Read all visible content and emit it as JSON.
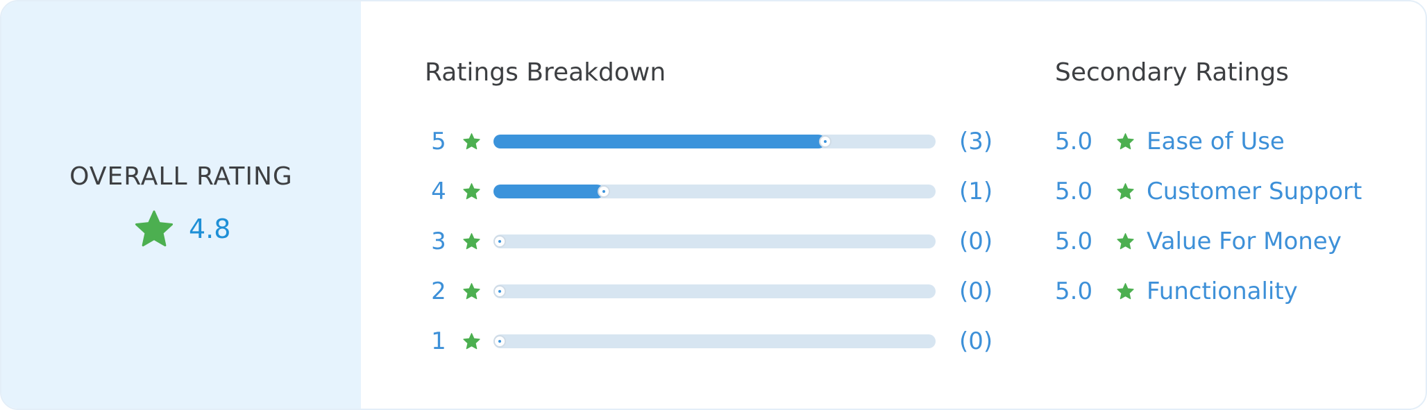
{
  "overall": {
    "title": "OVERALL RATING",
    "score": "4.8",
    "star_icon": "star-icon"
  },
  "colors": {
    "star": "#4caf50",
    "accent": "#3b93db",
    "track": "#d7e5f1",
    "left_panel": "#e6f3fd",
    "heading": "#3d3f42"
  },
  "breakdown": {
    "title": "Ratings Breakdown",
    "rows": [
      {
        "stars": "5",
        "count": "(3)",
        "fraction": 0.75
      },
      {
        "stars": "4",
        "count": "(1)",
        "fraction": 0.25
      },
      {
        "stars": "3",
        "count": "(0)",
        "fraction": 0
      },
      {
        "stars": "2",
        "count": "(0)",
        "fraction": 0
      },
      {
        "stars": "1",
        "count": "(0)",
        "fraction": 0
      }
    ]
  },
  "secondary": {
    "title": "Secondary Ratings",
    "items": [
      {
        "score": "5.0",
        "label": "Ease of Use"
      },
      {
        "score": "5.0",
        "label": "Customer Support"
      },
      {
        "score": "5.0",
        "label": "Value For Money"
      },
      {
        "score": "5.0",
        "label": "Functionality"
      }
    ]
  }
}
